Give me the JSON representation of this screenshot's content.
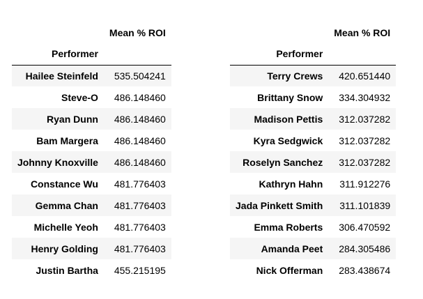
{
  "tables": [
    {
      "column_header": "Mean % ROI",
      "index_header": "Performer",
      "rows": [
        {
          "performer": "Hailee Steinfeld",
          "value": "535.504241"
        },
        {
          "performer": "Steve-O",
          "value": "486.148460"
        },
        {
          "performer": "Ryan Dunn",
          "value": "486.148460"
        },
        {
          "performer": "Bam Margera",
          "value": "486.148460"
        },
        {
          "performer": "Johnny Knoxville",
          "value": "486.148460"
        },
        {
          "performer": "Constance Wu",
          "value": "481.776403"
        },
        {
          "performer": "Gemma Chan",
          "value": "481.776403"
        },
        {
          "performer": "Michelle Yeoh",
          "value": "481.776403"
        },
        {
          "performer": "Henry Golding",
          "value": "481.776403"
        },
        {
          "performer": "Justin Bartha",
          "value": "455.215195"
        }
      ]
    },
    {
      "column_header": "Mean % ROI",
      "index_header": "Performer",
      "rows": [
        {
          "performer": "Terry Crews",
          "value": "420.651440"
        },
        {
          "performer": "Brittany Snow",
          "value": "334.304932"
        },
        {
          "performer": "Madison Pettis",
          "value": "312.037282"
        },
        {
          "performer": "Kyra Sedgwick",
          "value": "312.037282"
        },
        {
          "performer": "Roselyn Sanchez",
          "value": "312.037282"
        },
        {
          "performer": "Kathryn Hahn",
          "value": "311.912276"
        },
        {
          "performer": "Jada Pinkett Smith",
          "value": "311.101839"
        },
        {
          "performer": "Emma Roberts",
          "value": "306.470592"
        },
        {
          "performer": "Amanda Peet",
          "value": "284.305486"
        },
        {
          "performer": "Nick Offerman",
          "value": "283.438674"
        }
      ]
    }
  ]
}
